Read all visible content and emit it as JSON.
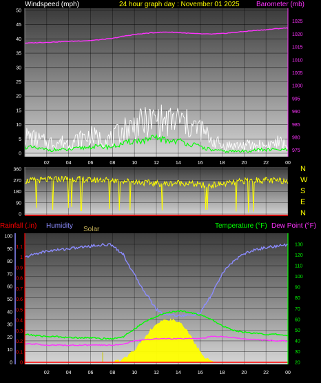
{
  "header": {
    "left_title": "Windspeed (mph)",
    "center_title": "24 hour graph day : November 01 2025",
    "right_title": "Barometer (mb)"
  },
  "compass": {
    "letters": [
      "N",
      "W",
      "S",
      "E",
      "N"
    ]
  },
  "bottom_labels": {
    "rainfall": "Rainfall (.in)",
    "humidity": "Humidity",
    "solar": "Solar",
    "temperature": "Temperature (°F)",
    "dewpoint": "Dew Point (°F)"
  },
  "colors": {
    "wind_gust": "#ffffff",
    "wind_avg": "#00ff00",
    "barometer": "#ff33ff",
    "direction": "#ffff00",
    "humidity": "#8c8cff",
    "temperature": "#00ff00",
    "dewpoint": "#ff33ff",
    "solar": "#ffff00",
    "rain": "#ff0000",
    "axis_text": "#ffffff",
    "bg_top": "#404040",
    "bg_bottom": "#d8d8d8"
  },
  "chart_data": [
    {
      "id": "wind",
      "type": "line",
      "title": "24 hour graph day : November 01 2025",
      "x_ticks": [
        "02",
        "04",
        "06",
        "08",
        "10",
        "12",
        "14",
        "16",
        "18",
        "20",
        "22",
        "00"
      ],
      "xlim": [
        0,
        24
      ],
      "left_axis": {
        "label": "Windspeed (mph)",
        "ticks": [
          0,
          5,
          10,
          15,
          20,
          25,
          30,
          35,
          40,
          45,
          50
        ],
        "ylim": [
          0,
          50
        ]
      },
      "right_axis": {
        "label": "Barometer (mb)",
        "ticks": [
          975,
          980,
          985,
          990,
          995,
          1000,
          1005,
          1010,
          1015,
          1020,
          1025
        ],
        "ylim": [
          972.5,
          1030
        ]
      },
      "series": [
        {
          "name": "Barometer (mb)",
          "axis": "right",
          "x": [
            0,
            2,
            4,
            6,
            8,
            9,
            10,
            11,
            12,
            13,
            14,
            15,
            16,
            17,
            18,
            19,
            20,
            21,
            22,
            23,
            24
          ],
          "values": [
            1016.5,
            1016.8,
            1017.2,
            1017.5,
            1018.3,
            1019.2,
            1019.8,
            1020.3,
            1020.6,
            1020.8,
            1020.6,
            1020.3,
            1020.1,
            1020.0,
            1020.2,
            1020.6,
            1021.0,
            1021.4,
            1021.7,
            1022.1,
            1022.4
          ]
        },
        {
          "axis": "left",
          "x": [
            0,
            1,
            2,
            3,
            4,
            5,
            6,
            7,
            8,
            9,
            10,
            11,
            12,
            13,
            14,
            15,
            16,
            17,
            18,
            19,
            20,
            21,
            22,
            23,
            24
          ],
          "values": [
            5,
            4,
            3,
            3,
            3,
            4,
            5,
            4,
            4,
            7,
            8,
            9,
            10,
            9,
            10,
            8,
            7,
            4,
            2,
            2,
            2,
            2,
            2,
            3,
            2
          ]
        },
        {
          "axis": "left",
          "x": [
            0,
            1,
            2,
            3,
            4,
            5,
            6,
            7,
            8,
            9,
            10,
            11,
            12,
            13,
            14,
            15,
            16,
            17,
            18,
            19,
            20,
            21,
            22,
            23,
            24
          ],
          "values": [
            2,
            1.5,
            1,
            1,
            1,
            1.5,
            2,
            2,
            2,
            3,
            4,
            4,
            5,
            4,
            4,
            3,
            2,
            1,
            0.5,
            0.5,
            0.5,
            1,
            1,
            1,
            1
          ]
        }
      ]
    },
    {
      "id": "direction",
      "type": "line",
      "x_ticks": [
        "02",
        "04",
        "06",
        "08",
        "10",
        "12",
        "14",
        "16",
        "18",
        "20",
        "22",
        "00"
      ],
      "xlim": [
        0,
        24
      ],
      "left_axis": {
        "ticks": [
          0,
          90,
          180,
          270,
          360
        ],
        "ylim": [
          0,
          360
        ]
      },
      "right_axis": {
        "ticks": [
          "N",
          "W",
          "S",
          "E",
          "N"
        ]
      },
      "series": [
        {
          "axis": "left",
          "x": [
            0,
            1,
            2,
            3,
            4,
            5,
            6,
            7,
            8,
            9,
            10,
            11,
            12,
            13,
            14,
            15,
            16,
            17,
            18,
            19,
            20,
            21,
            22,
            23,
            24
          ],
          "values": [
            265,
            270,
            275,
            280,
            285,
            280,
            270,
            275,
            272,
            265,
            260,
            250,
            245,
            240,
            250,
            245,
            230,
            230,
            240,
            250,
            265,
            270,
            270,
            265,
            268
          ]
        }
      ]
    },
    {
      "id": "thermo",
      "type": "line",
      "x_ticks": [
        "02",
        "04",
        "06",
        "08",
        "10",
        "12",
        "14",
        "16",
        "18",
        "20",
        "22",
        "00"
      ],
      "xlim": [
        0,
        24
      ],
      "rain_axis": {
        "label": "Rainfall (.in)",
        "ticks": [
          "0",
          "0.1",
          "0.2",
          "0.3",
          "0.4",
          "0.5",
          "0.6",
          "0.7",
          "0.8",
          "0.9",
          "1",
          "1.1"
        ],
        "ylim": [
          0,
          1.2
        ]
      },
      "humidity_axis": {
        "label": "Humidity",
        "ticks": [
          0,
          10,
          20,
          30,
          40,
          50,
          60,
          70,
          80,
          90,
          100
        ],
        "ylim": [
          0,
          100
        ]
      },
      "temp_axis": {
        "label": "Temperature (°F)",
        "ticks": [
          20,
          30,
          40,
          50,
          60,
          70,
          80,
          90,
          100,
          110,
          120,
          130
        ],
        "ylim": [
          20,
          137
        ]
      },
      "series": [
        {
          "name": "Humidity",
          "axis": "humidity",
          "x": [
            0,
            1,
            2,
            3,
            4,
            5,
            6,
            7,
            8,
            9,
            10,
            11,
            12,
            12.5,
            13,
            14,
            15,
            16,
            17,
            18,
            19,
            20,
            21,
            22,
            23,
            24
          ],
          "values": [
            83,
            86,
            88,
            89,
            90,
            91,
            92,
            93,
            93,
            85,
            69,
            55,
            42,
            39,
            38,
            37,
            37,
            39,
            53,
            70,
            80,
            86,
            89,
            91,
            92,
            93
          ]
        },
        {
          "name": "Temperature (°F)",
          "axis": "temp",
          "x": [
            0,
            1,
            2,
            3,
            4,
            5,
            6,
            7,
            8,
            9,
            10,
            11,
            12,
            13,
            14,
            15,
            16,
            17,
            18,
            19,
            20,
            21,
            22,
            23,
            24
          ],
          "values": [
            46,
            45,
            44,
            44,
            43,
            43,
            43,
            42,
            42,
            44,
            51,
            58,
            63,
            66,
            68,
            67,
            64,
            60,
            54,
            50,
            48,
            47,
            46,
            46,
            45
          ]
        },
        {
          "name": "Dew Point (°F)",
          "axis": "temp",
          "x": [
            0,
            1,
            2,
            3,
            4,
            5,
            6,
            7,
            8,
            9,
            10,
            11,
            12,
            13,
            14,
            15,
            16,
            17,
            18,
            19,
            20,
            21,
            22,
            23,
            24
          ],
          "values": [
            37,
            37,
            36,
            36,
            36,
            36,
            36,
            36,
            36,
            37,
            40,
            41,
            42,
            42,
            42,
            42,
            42,
            44,
            44,
            43,
            42,
            41,
            41,
            40,
            40
          ]
        },
        {
          "name": "Solar",
          "axis": "humidity",
          "x": [
            0,
            6.5,
            7,
            7.5,
            8,
            8.5,
            9,
            9.5,
            10,
            10.5,
            11,
            11.5,
            12,
            12.5,
            13,
            13.5,
            14,
            14.5,
            15,
            15.5,
            16,
            16.5,
            17,
            17.5,
            24
          ],
          "values": [
            0,
            0,
            0,
            0,
            0,
            1,
            3,
            6,
            10,
            15,
            20,
            26,
            30,
            32,
            34,
            33,
            32,
            28,
            22,
            15,
            8,
            3,
            1,
            0,
            0
          ]
        },
        {
          "name": "Rainfall (.in)",
          "axis": "rain",
          "x": [
            0,
            24
          ],
          "values": [
            0,
            0
          ]
        }
      ]
    }
  ]
}
